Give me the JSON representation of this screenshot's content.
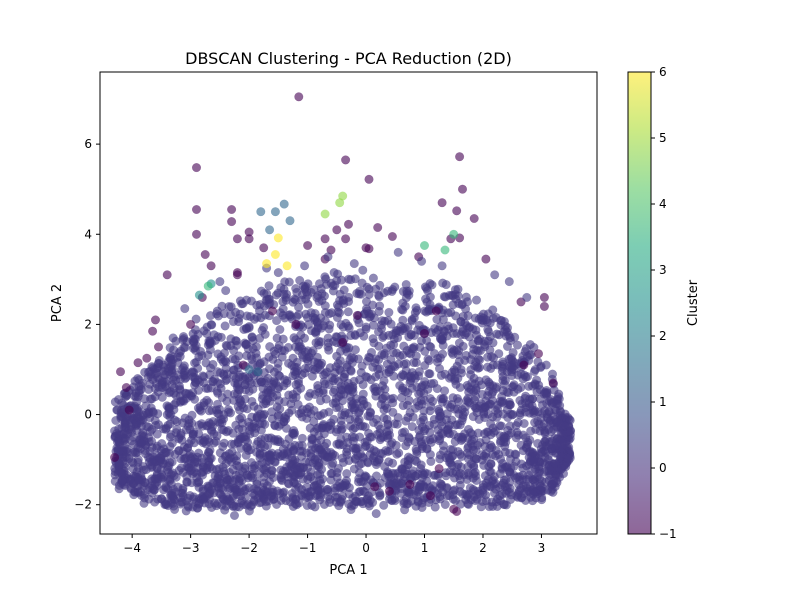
{
  "chart_data": {
    "type": "scatter",
    "title": "DBSCAN Clustering - PCA Reduction (2D)",
    "xlabel": "PCA 1",
    "ylabel": "PCA 2",
    "xlim": [
      -4.55,
      3.95
    ],
    "ylim": [
      -2.65,
      7.6
    ],
    "xticks": [
      -4,
      -3,
      -2,
      -1,
      0,
      1,
      2,
      3
    ],
    "yticks": [
      -2,
      0,
      2,
      4,
      6
    ],
    "xtick_labels": [
      "−4",
      "−3",
      "−2",
      "−1",
      "0",
      "1",
      "2",
      "3"
    ],
    "ytick_labels": [
      "−2",
      "0",
      "2",
      "4",
      "6"
    ],
    "grid": false,
    "marker_alpha": 0.6,
    "colorbar": {
      "label": "Cluster",
      "min": -1,
      "max": 6,
      "ticks": [
        -1,
        0,
        1,
        2,
        3,
        4,
        5,
        6
      ],
      "tick_labels": [
        "−1",
        "0",
        "1",
        "2",
        "3",
        "4",
        "5",
        "6"
      ],
      "colormap": "viridis",
      "colormap_stops": [
        "#440154",
        "#472c7a",
        "#3b518b",
        "#2c718e",
        "#21908d",
        "#27ad81",
        "#5cc863",
        "#aadc32",
        "#fde725"
      ]
    },
    "cluster_colors": {
      "-1": "#440154",
      "0": "#443a83",
      "1": "#31688e",
      "2": "#21918c",
      "3": "#35b779",
      "4": "#90d743",
      "5": "#fde725"
    },
    "series": [
      {
        "cluster": -1,
        "x": [
          -1.15,
          -2.9,
          -2.9,
          -0.35,
          0.05,
          1.6,
          1.65,
          -2.3,
          -2.3,
          -2.0,
          -2.9,
          1.3,
          1.85,
          -2.0,
          -2.2,
          -2.75,
          -2.65,
          -2.2,
          -2.2,
          -1.75,
          -1.0,
          -0.7,
          -0.5,
          -0.3,
          -0.35,
          -0.6,
          -0.7,
          0.05,
          0.2,
          0.0,
          0.45,
          0.9,
          1.55,
          1.6,
          1.45,
          2.05,
          -3.4,
          -3.6,
          -3.65,
          -3.0,
          -3.55,
          -3.75,
          -3.9,
          -4.2,
          -4.1,
          -4.05,
          -4.3,
          2.65,
          3.05,
          3.05,
          2.95,
          2.7,
          3.2,
          1.5,
          1.55,
          1.1,
          0.4,
          1.25,
          0.15,
          0.75,
          -2.8,
          -1.6,
          -1.2,
          -0.4,
          -0.15,
          1.2,
          1.0,
          -2.1
        ],
        "y": [
          7.05,
          5.48,
          4.55,
          5.65,
          5.22,
          5.72,
          5.0,
          4.55,
          4.28,
          4.05,
          4.0,
          4.7,
          4.35,
          3.9,
          3.9,
          3.55,
          3.3,
          3.15,
          3.1,
          3.7,
          3.75,
          3.9,
          4.1,
          4.22,
          3.9,
          3.65,
          3.45,
          3.68,
          4.15,
          3.7,
          3.95,
          3.5,
          4.52,
          3.92,
          3.9,
          3.45,
          3.1,
          2.1,
          1.85,
          2.0,
          1.5,
          1.25,
          1.15,
          0.95,
          0.6,
          0.1,
          -0.95,
          2.5,
          2.6,
          2.4,
          1.35,
          1.1,
          0.7,
          -2.1,
          -2.15,
          -1.8,
          -1.7,
          -1.2,
          -1.6,
          -1.55,
          2.6,
          2.3,
          2.0,
          1.6,
          2.2,
          2.3,
          1.8,
          1.1
        ]
      },
      {
        "cluster": 0,
        "x": [
          -1.7,
          -1.5,
          -0.65,
          -1.05,
          -0.2,
          0.55,
          0.95,
          1.3,
          2.2,
          2.45,
          2.75,
          -2.5,
          -2.4,
          -3.1,
          -3.3,
          -2.95
        ],
        "y": [
          3.25,
          3.15,
          3.5,
          3.3,
          3.35,
          3.6,
          3.4,
          3.3,
          3.1,
          2.95,
          2.6,
          2.95,
          2.75,
          2.35,
          1.7,
          1.6
        ]
      },
      {
        "cluster": 1,
        "x": [
          -1.8,
          -1.55,
          -1.4,
          -1.3,
          -1.65,
          -2.0,
          -1.85
        ],
        "y": [
          4.5,
          4.5,
          4.67,
          4.3,
          4.1,
          1.0,
          0.95
        ]
      },
      {
        "cluster": 2,
        "x": [
          -2.65,
          -2.85
        ],
        "y": [
          2.9,
          2.65
        ]
      },
      {
        "cluster": 3,
        "x": [
          1.0,
          1.35,
          1.5,
          -2.7
        ],
        "y": [
          3.75,
          3.65,
          4.0,
          2.85
        ]
      },
      {
        "cluster": 4,
        "x": [
          -0.7,
          -0.4,
          -0.45
        ],
        "y": [
          4.45,
          4.85,
          4.7
        ]
      },
      {
        "cluster": 5,
        "x": [
          -1.5,
          -1.55,
          -1.7,
          -1.35
        ],
        "y": [
          3.92,
          3.55,
          3.35,
          3.3
        ]
      }
    ],
    "dense_cluster_0": {
      "description_free_region": "main body of cluster 0",
      "x_range": [
        -4.3,
        3.5
      ],
      "y_range": [
        -2.1,
        3.2
      ],
      "shape": "arch",
      "envelope": [
        [
          -4.3,
          -1.5,
          0.3
        ],
        [
          -3.5,
          -2.0,
          1.3
        ],
        [
          -2.5,
          -2.1,
          2.4
        ],
        [
          -1.5,
          -2.0,
          2.9
        ],
        [
          -0.5,
          -2.0,
          3.1
        ],
        [
          0.5,
          -2.0,
          3.0
        ],
        [
          1.5,
          -2.0,
          2.8
        ],
        [
          2.5,
          -2.0,
          2.0
        ],
        [
          3.2,
          -1.7,
          0.9
        ],
        [
          3.5,
          -0.9,
          -0.3
        ]
      ]
    }
  }
}
